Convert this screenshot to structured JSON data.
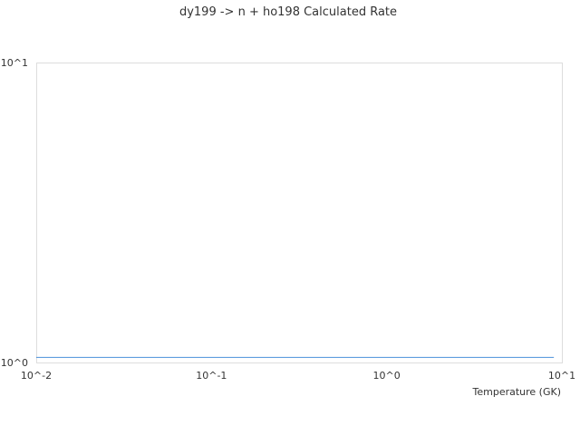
{
  "chart_data": {
    "type": "line",
    "title": "dy199 -> n + ho198 Calculated Rate",
    "xlabel": "Temperature (GK)",
    "ylabel": "",
    "xscale": "log",
    "yscale": "log",
    "xlim": [
      0.01,
      10
    ],
    "ylim": [
      1,
      10
    ],
    "x_ticks": [
      0.01,
      0.1,
      1,
      10
    ],
    "x_tick_labels": [
      "10^-2",
      "10^-1",
      "10^0",
      "10^1"
    ],
    "y_ticks": [
      1,
      10
    ],
    "y_tick_labels": [
      "10^0",
      "10^1"
    ],
    "grid": false,
    "legend": "none",
    "series": [
      {
        "x": [
          0.01,
          0.1,
          1,
          9
        ],
        "y": [
          1.04,
          1.04,
          1.04,
          1.04
        ],
        "color": "#4a90d9"
      }
    ]
  }
}
